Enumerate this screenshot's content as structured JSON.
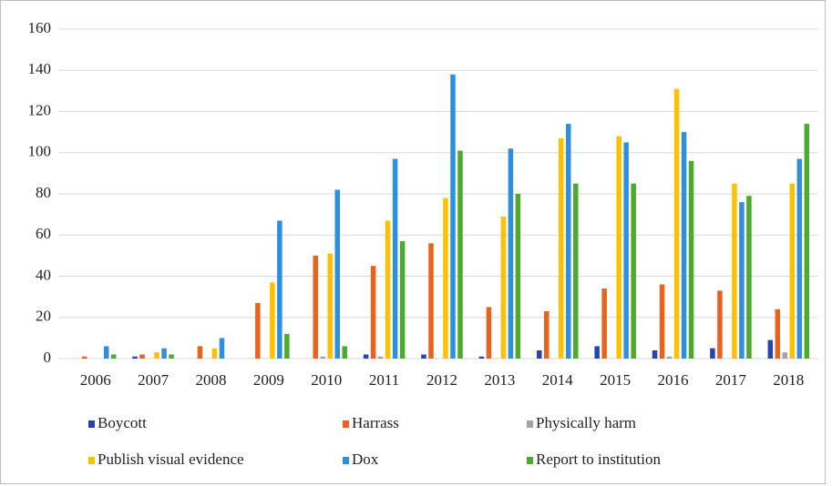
{
  "chart_data": {
    "type": "bar",
    "categories": [
      "2006",
      "2007",
      "2008",
      "2009",
      "2010",
      "2011",
      "2012",
      "2013",
      "2014",
      "2015",
      "2016",
      "2017",
      "2018"
    ],
    "series": [
      {
        "name": "Boycott",
        "color": "#2543b5",
        "values": [
          0,
          1,
          0,
          0,
          0,
          2,
          2,
          1,
          4,
          6,
          4,
          5,
          9
        ]
      },
      {
        "name": "Harrass",
        "color": "#e8641e",
        "values": [
          1,
          2,
          6,
          27,
          50,
          45,
          56,
          25,
          23,
          34,
          36,
          33,
          24
        ]
      },
      {
        "name": "Physically harm",
        "color": "#a3a3a3",
        "values": [
          0,
          0,
          0,
          0,
          1,
          1,
          0,
          0,
          0,
          0,
          1,
          0,
          3
        ]
      },
      {
        "name": "Publish visual evidence",
        "color": "#ffc000",
        "values": [
          0,
          3,
          5,
          37,
          51,
          67,
          78,
          69,
          107,
          108,
          131,
          85,
          85
        ]
      },
      {
        "name": "Dox",
        "color": "#2f8fdc",
        "values": [
          6,
          5,
          10,
          67,
          82,
          97,
          138,
          102,
          114,
          105,
          110,
          76,
          97
        ]
      },
      {
        "name": "Report to institution",
        "color": "#4caa2c",
        "values": [
          2,
          2,
          0,
          12,
          6,
          57,
          101,
          80,
          85,
          85,
          96,
          79,
          114
        ]
      }
    ],
    "ylim": [
      0,
      160
    ],
    "yticks": [
      0,
      20,
      40,
      60,
      80,
      100,
      120,
      140,
      160
    ],
    "grid": true
  }
}
